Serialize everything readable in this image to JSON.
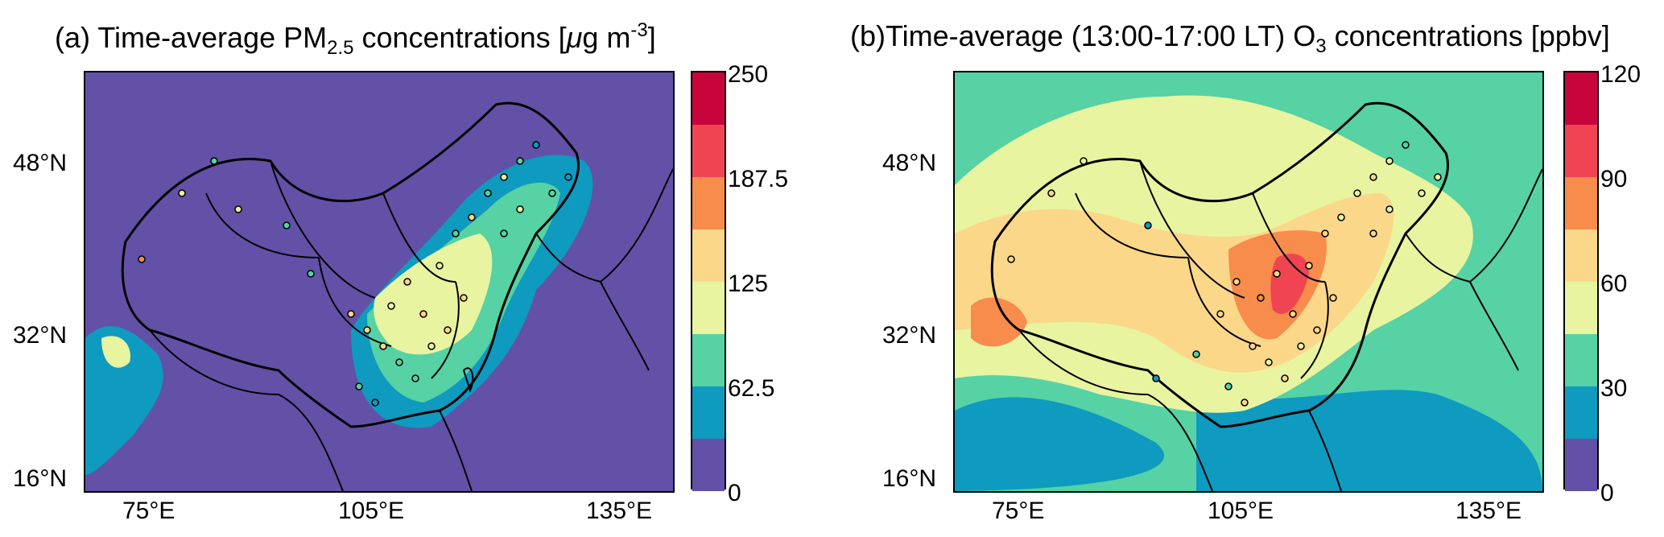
{
  "panel_a": {
    "title_main": "(a) Time-average PM",
    "title_sub": "2.5",
    "title_mid": " concentrations [",
    "title_mu": "μ",
    "title_unit": "g m",
    "title_sup": "-3",
    "title_end": "]",
    "lat_labels": [
      "48°N",
      "32°N",
      "16°N"
    ],
    "lon_labels": [
      "75°E",
      "105°E",
      "135°E"
    ],
    "colorbar_ticks": [
      "250",
      "187.5",
      "125",
      "62.5",
      "0"
    ],
    "background_color": "#6351a7"
  },
  "panel_b": {
    "title_main": "(b)Time-average (13:00-17:00 LT) O",
    "title_sub": "3",
    "title_end": " concentrations [ppbv]",
    "lat_labels": [
      "48°N",
      "32°N",
      "16°N"
    ],
    "lon_labels": [
      "75°E",
      "105°E",
      "135°E"
    ],
    "colorbar_ticks": [
      "120",
      "90",
      "60",
      "30",
      "0"
    ],
    "background_color": "#56d2a4"
  },
  "colorbar_colors": [
    "#c8043d",
    "#f14453",
    "#f78c4c",
    "#fbd789",
    "#e8f4a0",
    "#56d2a4",
    "#0f9ac0",
    "#6351a7"
  ]
}
